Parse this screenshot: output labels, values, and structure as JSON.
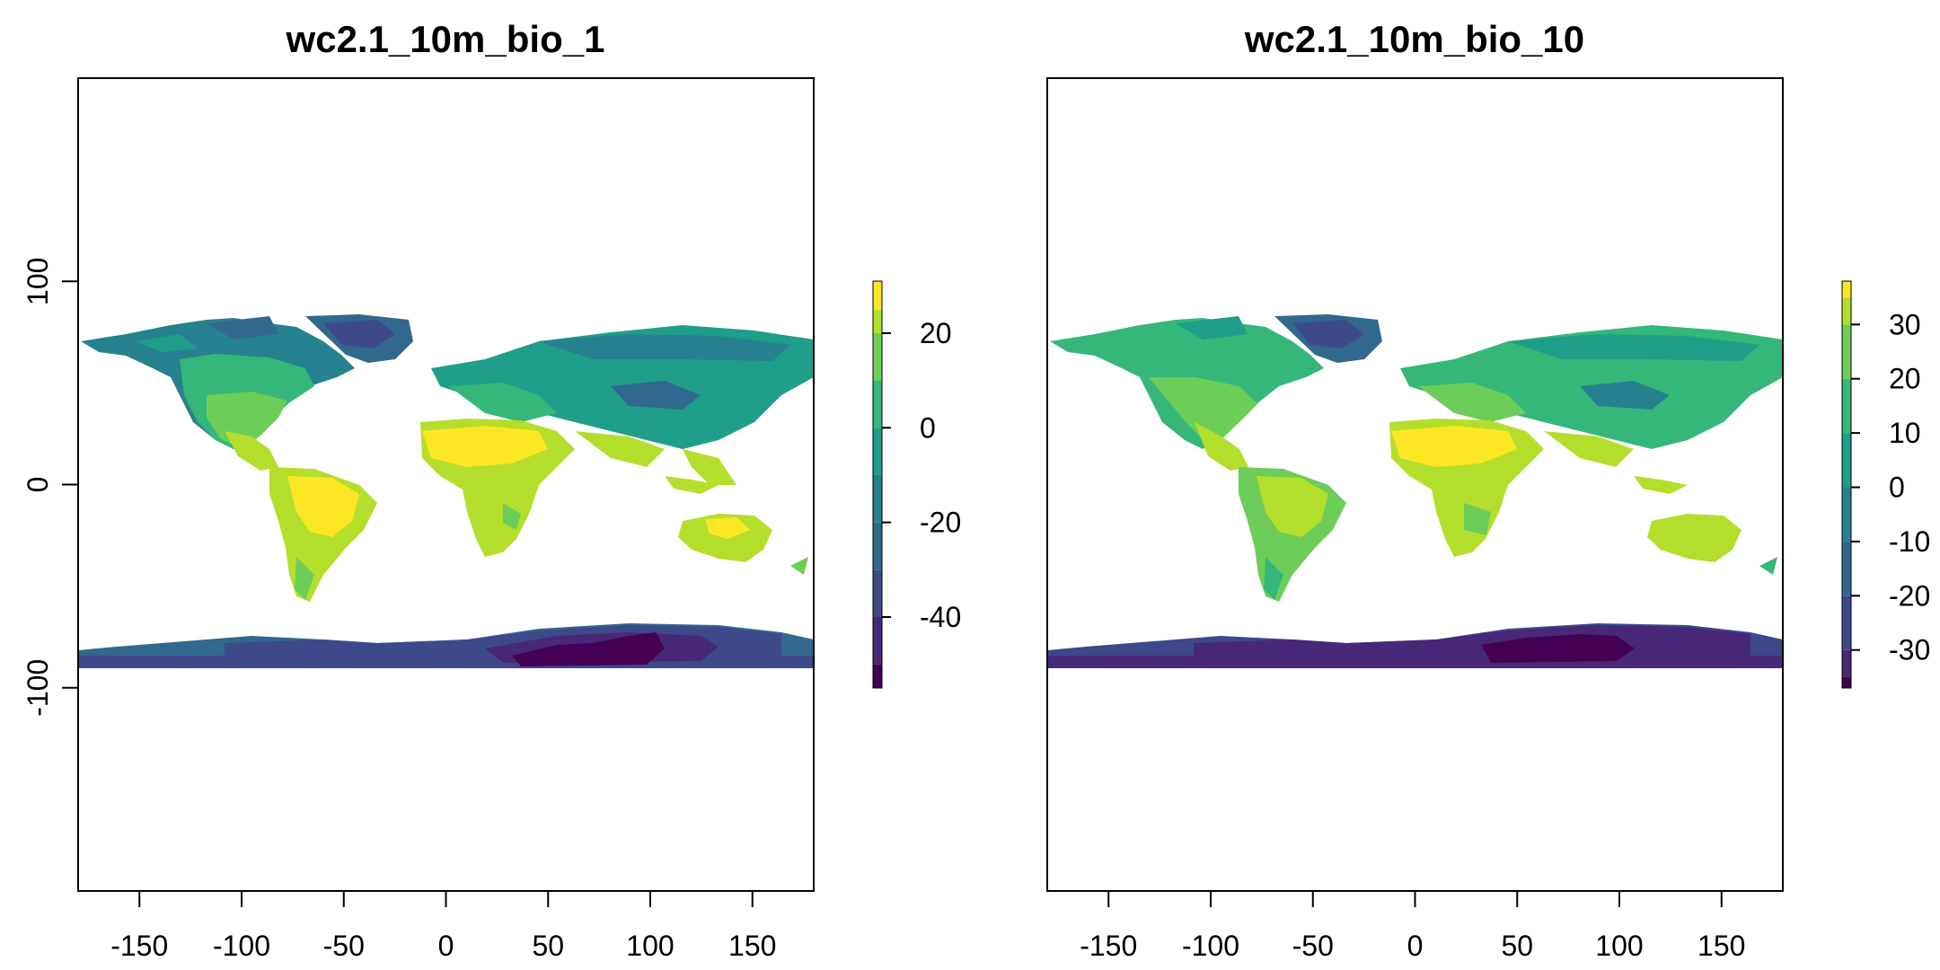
{
  "panels": [
    {
      "title": "wc2.1_10m_bio_1",
      "x_ticks": [
        "-150",
        "-100",
        "-50",
        "0",
        "50",
        "100",
        "150"
      ],
      "x_tick_values": [
        -150,
        -100,
        -50,
        0,
        50,
        100,
        150
      ],
      "y_ticks": [
        "100",
        "0",
        "-100"
      ],
      "y_tick_values": [
        100,
        0,
        -100
      ],
      "xlim": [
        -180,
        180
      ],
      "ylim": [
        -200,
        200
      ],
      "legend": {
        "range": [
          -55,
          31
        ],
        "breaks": [
          -55,
          -50,
          -40,
          -30,
          -20,
          -10,
          0,
          10,
          20,
          25,
          31
        ],
        "labels": [
          "20",
          "0",
          "-20",
          "-40"
        ],
        "label_values": [
          20,
          0,
          -20,
          -40
        ]
      }
    },
    {
      "title": "wc2.1_10m_bio_10",
      "x_ticks": [
        "-150",
        "-100",
        "-50",
        "0",
        "50",
        "100",
        "150"
      ],
      "x_tick_values": [
        -150,
        -100,
        -50,
        0,
        50,
        100,
        150
      ],
      "y_ticks": [],
      "y_tick_values": [],
      "xlim": [
        -180,
        180
      ],
      "ylim": [
        -200,
        200
      ],
      "legend": {
        "range": [
          -37,
          38
        ],
        "breaks": [
          -37,
          -35,
          -30,
          -20,
          -10,
          0,
          10,
          20,
          30,
          35,
          38
        ],
        "labels": [
          "30",
          "20",
          "10",
          "0",
          "-10",
          "-20",
          "-30"
        ],
        "label_values": [
          30,
          20,
          10,
          0,
          -10,
          -20,
          -30
        ]
      }
    }
  ],
  "palette": [
    "#440154",
    "#482878",
    "#3E4989",
    "#31688E",
    "#26828E",
    "#1F9E89",
    "#35B779",
    "#6DCD59",
    "#B4DE2C",
    "#FDE725"
  ]
}
